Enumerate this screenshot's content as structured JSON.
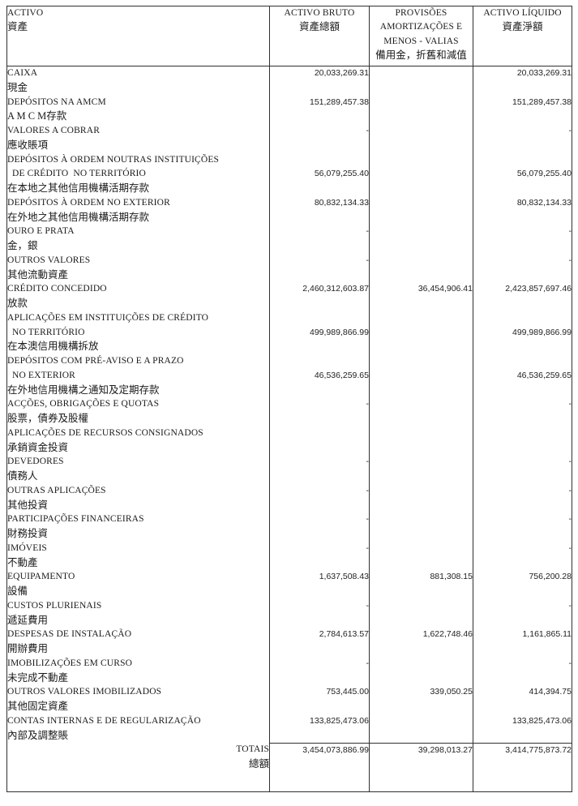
{
  "colors": {
    "background": "#ffffff",
    "border": "#303030",
    "text": "#1a1a1a"
  },
  "table": {
    "header": {
      "col_activo": {
        "pt": "ACTIVO",
        "zh": "資產"
      },
      "col_bruto": {
        "pt": "ACTIVO BRUTO",
        "zh": "資產總額"
      },
      "col_provisoes": {
        "pt_lines": [
          "PROVISÕES",
          "AMORTIZAÇÕES E",
          "MENOS - VALIAS"
        ],
        "zh": "備用金，折舊和減值"
      },
      "col_liquido": {
        "pt": "ACTIVO LÍQUIDO",
        "zh": "資產淨額"
      }
    },
    "rows": [
      {
        "pt_lines": [
          "CAIXA"
        ],
        "zh": "現金",
        "bruto": "20,033,269.31",
        "provisoes": "",
        "liquido": "20,033,269.31",
        "value_line": 0
      },
      {
        "pt_lines": [
          "DEPÓSITOS NA AMCM"
        ],
        "zh": "A M C M存款",
        "bruto": "151,289,457.38",
        "provisoes": "",
        "liquido": "151,289,457.38",
        "value_line": 0
      },
      {
        "pt_lines": [
          "VALORES A COBRAR"
        ],
        "zh": "應收賬項",
        "bruto": "-",
        "provisoes": "",
        "liquido": "-",
        "value_line": 0
      },
      {
        "pt_lines": [
          "DEPÓSITOS À ORDEM NOUTRAS INSTITUIÇÕES",
          "DE CRÉDITO  NO TERRITÓRIO"
        ],
        "zh": "在本地之其他信用機構活期存款",
        "bruto": "56,079,255.40",
        "provisoes": "",
        "liquido": "56,079,255.40",
        "value_line": 1
      },
      {
        "pt_lines": [
          "DEPÓSITOS À ORDEM NO EXTERIOR"
        ],
        "zh": "在外地之其他信用機構活期存款",
        "bruto": "80,832,134.33",
        "provisoes": "",
        "liquido": "80,832,134.33",
        "value_line": 0
      },
      {
        "pt_lines": [
          "OURO E PRATA"
        ],
        "zh": "金，銀",
        "bruto": "-",
        "provisoes": "",
        "liquido": "-",
        "value_line": 0
      },
      {
        "pt_lines": [
          "OUTROS VALORES"
        ],
        "zh": "其他流動資產",
        "bruto": "-",
        "provisoes": "",
        "liquido": "-",
        "value_line": 0
      },
      {
        "pt_lines": [
          "CRÉDITO CONCEDIDO"
        ],
        "zh": "放款",
        "bruto": "2,460,312,603.87",
        "provisoes": "36,454,906.41",
        "liquido": "2,423,857,697.46",
        "value_line": 0
      },
      {
        "pt_lines": [
          "APLICAÇÕES EM INSTITUIÇÕES DE CRÉDITO",
          "NO TERRITÓRIO"
        ],
        "zh": "在本澳信用機構拆放",
        "bruto": "499,989,866.99",
        "provisoes": "",
        "liquido": "499,989,866.99",
        "value_line": 1
      },
      {
        "pt_lines": [
          "DEPÓSITOS COM PRÉ-AVISO E A PRAZO",
          "NO EXTERIOR"
        ],
        "zh": "在外地信用機構之通知及定期存款",
        "bruto": "46,536,259.65",
        "provisoes": "",
        "liquido": "46,536,259.65",
        "value_line": 1
      },
      {
        "pt_lines": [
          "ACÇÕES, OBRIGAÇÕES E QUOTAS"
        ],
        "zh": "股票，債券及股權",
        "bruto": "-",
        "provisoes": "",
        "liquido": "-",
        "value_line": 0
      },
      {
        "pt_lines": [
          "APLICAÇÕES DE RECURSOS CONSIGNADOS"
        ],
        "zh": "承銷資金投資",
        "bruto": "",
        "provisoes": "",
        "liquido": "",
        "value_line": 0
      },
      {
        "pt_lines": [
          "DEVEDORES"
        ],
        "zh": "債務人",
        "bruto": "-",
        "provisoes": "",
        "liquido": "-",
        "value_line": 0
      },
      {
        "pt_lines": [
          "OUTRAS APLICAÇÕES"
        ],
        "zh": "其他投資",
        "bruto": "-",
        "provisoes": "",
        "liquido": "-",
        "value_line": 0
      },
      {
        "pt_lines": [
          "PARTICIPAÇÕES FINANCEIRAS"
        ],
        "zh": "財務投資",
        "bruto": "-",
        "provisoes": "",
        "liquido": "-",
        "value_line": 0
      },
      {
        "pt_lines": [
          "IMÓVEIS"
        ],
        "zh": "不動產",
        "bruto": "-",
        "provisoes": "",
        "liquido": "-",
        "value_line": 0
      },
      {
        "pt_lines": [
          "EQUIPAMENTO"
        ],
        "zh": "設備",
        "bruto": "1,637,508.43",
        "provisoes": "881,308.15",
        "liquido": "756,200.28",
        "value_line": 0
      },
      {
        "pt_lines": [
          "CUSTOS PLURIENAIS"
        ],
        "zh": "遞延費用",
        "bruto": "-",
        "provisoes": "",
        "liquido": "-",
        "value_line": 0
      },
      {
        "pt_lines": [
          "DESPESAS DE INSTALAÇÃO"
        ],
        "zh": "開辦費用",
        "bruto": "2,784,613.57",
        "provisoes": "1,622,748.46",
        "liquido": "1,161,865.11",
        "value_line": 0
      },
      {
        "pt_lines": [
          "IMOBILIZAÇÕES EM CURSO"
        ],
        "zh": "未完成不動產",
        "bruto": "-",
        "provisoes": "",
        "liquido": "-",
        "value_line": 0
      },
      {
        "pt_lines": [
          "OUTROS VALORES IMOBILIZADOS"
        ],
        "zh": "其他固定資產",
        "bruto": "753,445.00",
        "provisoes": "339,050.25",
        "liquido": "414,394.75",
        "value_line": 0
      },
      {
        "pt_lines": [
          "CONTAS INTERNAS E DE REGULARIZAÇÃO"
        ],
        "zh": "內部及調整賬",
        "bruto": "133,825,473.06",
        "provisoes": "",
        "liquido": "133,825,473.06",
        "value_line": 0
      }
    ],
    "totals": {
      "label_pt": "TOTAIS",
      "label_zh": "總額",
      "bruto": "3,454,073,886.99",
      "provisoes": "39,298,013.27",
      "liquido": "3,414,775,873.72"
    }
  }
}
